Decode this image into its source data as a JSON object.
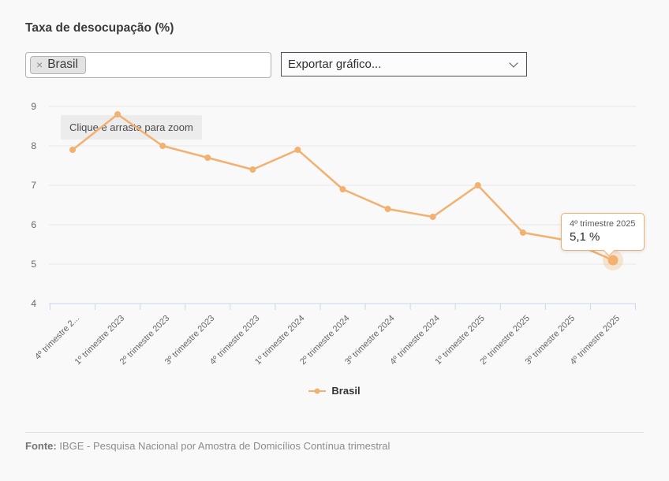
{
  "header": {
    "title": "Taxa de desocupação (%)"
  },
  "controls": {
    "territory_select": {
      "selected_tag": "Brasil",
      "remove_icon": "×"
    },
    "export_select": {
      "value": "Exportar gráfico...",
      "chevron_icon": "⌄"
    }
  },
  "chart": {
    "zoom_hint": "Clique e arraste para zoom"
  },
  "chart_data": {
    "type": "line",
    "title": "Taxa de desocupação (%)",
    "categories": [
      "4º trimestre 2...",
      "1º trimestre 2023",
      "2º trimestre 2023",
      "3º trimestre 2023",
      "4º trimestre 2023",
      "1º trimestre 2024",
      "2º trimestre 2024",
      "3º trimestre 2024",
      "4º trimestre 2024",
      "1º trimestre 2025",
      "2º trimestre 2025",
      "3º trimestre 2025",
      "4º trimestre 2025"
    ],
    "series": [
      {
        "name": "Brasil",
        "color": "#f2b171",
        "values": [
          7.9,
          8.8,
          8.0,
          7.7,
          7.4,
          7.9,
          6.9,
          6.4,
          6.2,
          7.0,
          5.8,
          5.6,
          5.1
        ]
      }
    ],
    "xlabel": "",
    "ylabel": "",
    "ylim": [
      4,
      9
    ],
    "yticks": [
      4,
      5,
      6,
      7,
      8,
      9
    ],
    "grid": true,
    "legend_position": "bottom-center",
    "highlighted_point": {
      "category": "4º trimestre 2025",
      "value": 5.1,
      "value_label": "5,1 %"
    }
  },
  "colors": {
    "accent": "#f2b171",
    "grid": "#e6e6e6",
    "axis": "#ccd6eb",
    "text_muted": "#666666",
    "page_bg": "#f9f9f9"
  },
  "footer": {
    "source_label": "Fonte:",
    "source_text": "IBGE - Pesquisa Nacional por Amostra de Domicílios Contínua trimestral"
  }
}
